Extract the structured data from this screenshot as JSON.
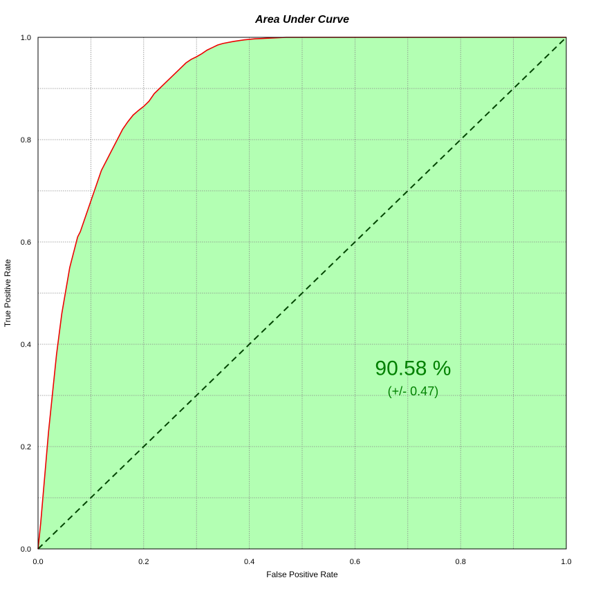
{
  "chart_data": {
    "type": "area",
    "title": "Area Under Curve",
    "xlabel": "False Positive Rate",
    "ylabel": "True Positive Rate",
    "xlim": [
      0,
      1
    ],
    "ylim": [
      0,
      1
    ],
    "grid": true,
    "xticks": [
      "0.0",
      "0.2",
      "0.4",
      "0.6",
      "0.8",
      "1.0"
    ],
    "yticks": [
      "0.0",
      "0.2",
      "0.4",
      "0.6",
      "0.8",
      "1.0"
    ],
    "series": [
      {
        "name": "",
        "x": [
          0.0,
          0.005,
          0.01,
          0.015,
          0.02,
          0.025,
          0.03,
          0.035,
          0.04,
          0.045,
          0.05,
          0.055,
          0.06,
          0.065,
          0.07,
          0.075,
          0.08,
          0.09,
          0.1,
          0.11,
          0.12,
          0.13,
          0.14,
          0.15,
          0.16,
          0.17,
          0.18,
          0.19,
          0.2,
          0.21,
          0.22,
          0.23,
          0.24,
          0.25,
          0.26,
          0.27,
          0.28,
          0.29,
          0.3,
          0.31,
          0.32,
          0.33,
          0.34,
          0.35,
          0.37,
          0.39,
          0.41,
          0.43,
          0.45,
          0.47,
          0.5,
          0.6,
          0.7,
          0.8,
          0.9,
          1.0
        ],
        "y": [
          0.0,
          0.05,
          0.11,
          0.17,
          0.23,
          0.28,
          0.33,
          0.38,
          0.42,
          0.46,
          0.49,
          0.52,
          0.55,
          0.57,
          0.59,
          0.61,
          0.62,
          0.65,
          0.68,
          0.71,
          0.74,
          0.76,
          0.78,
          0.8,
          0.82,
          0.835,
          0.848,
          0.857,
          0.865,
          0.875,
          0.89,
          0.9,
          0.91,
          0.92,
          0.93,
          0.94,
          0.95,
          0.957,
          0.962,
          0.968,
          0.975,
          0.98,
          0.985,
          0.988,
          0.992,
          0.995,
          0.997,
          0.998,
          0.999,
          1.0,
          1.0,
          1.0,
          1.0,
          1.0,
          1.0,
          1.0
        ],
        "color": "#ee0000"
      },
      {
        "name": "",
        "x": [
          0,
          1
        ],
        "y": [
          0,
          1
        ],
        "color": "#004400",
        "style": "dashed"
      }
    ],
    "annotations": [
      {
        "text": "90.58 %",
        "x": 0.71,
        "y": 0.34
      },
      {
        "text": "(+/- 0.47)",
        "x": 0.71,
        "y": 0.3
      }
    ],
    "colors": {
      "fill": "#b3ffb3",
      "curve": "#ee0000",
      "diagonal": "#004400",
      "grid": "#888888",
      "annotation": "#008000"
    }
  }
}
